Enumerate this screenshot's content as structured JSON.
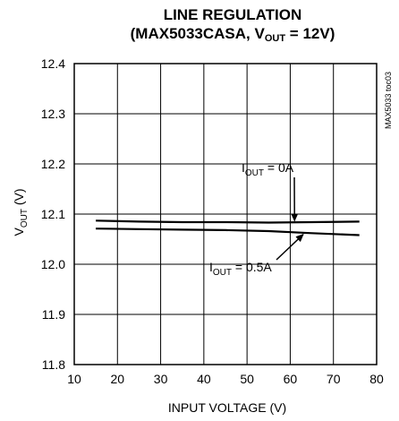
{
  "chart_data": {
    "type": "line",
    "title": "LINE REGULATION",
    "subtitle": {
      "prefix": "(MAX5033CASA, V",
      "sub": "OUT",
      "suffix": " = 12V)"
    },
    "xlabel": "INPUT VOLTAGE (V)",
    "ylabel": {
      "main": "V",
      "sub": "OUT",
      "suffix": " (V)"
    },
    "xlim": [
      10,
      80
    ],
    "ylim": [
      11.8,
      12.4
    ],
    "x_ticks": [
      "10",
      "20",
      "30",
      "40",
      "50",
      "60",
      "70",
      "80"
    ],
    "y_ticks": [
      "12.4",
      "12.3",
      "12.2",
      "12.1",
      "12.0",
      "11.9",
      "11.8"
    ],
    "grid": true,
    "side_label": "MAX5033 toc03",
    "series": [
      {
        "name": {
          "main": "I",
          "sub": "OUT",
          "suffix": " = 0A"
        },
        "x": [
          15,
          25,
          35,
          45,
          55,
          65,
          76
        ],
        "y": [
          12.087,
          12.085,
          12.084,
          12.084,
          12.083,
          12.084,
          12.085
        ]
      },
      {
        "name": {
          "main": "I",
          "sub": "OUT",
          "suffix": " = 0.5A"
        },
        "x": [
          15,
          25,
          35,
          45,
          55,
          65,
          76
        ],
        "y": [
          12.071,
          12.07,
          12.069,
          12.068,
          12.066,
          12.062,
          12.058
        ]
      }
    ]
  }
}
